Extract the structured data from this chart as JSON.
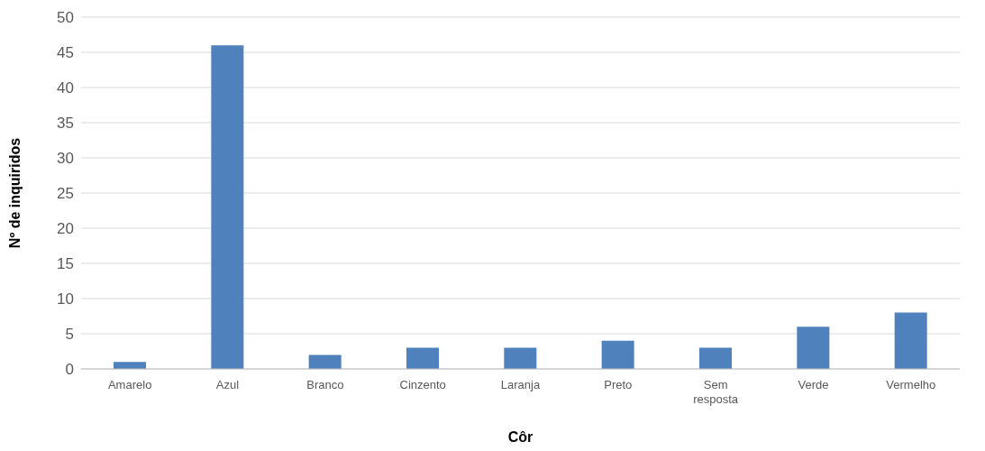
{
  "chart_data": {
    "type": "bar",
    "xlabel": "Côr",
    "ylabel": "Nº de inquiridos",
    "categories": [
      "Amarelo",
      "Azul",
      "Branco",
      "Cinzento",
      "Laranja",
      "Preto",
      "Sem resposta",
      "Verde",
      "Vermelho"
    ],
    "values": [
      1,
      46,
      2,
      3,
      3,
      4,
      3,
      6,
      8
    ],
    "color": "#4f81bd",
    "ylim": [
      0,
      50
    ],
    "yticks": [
      0,
      5,
      10,
      15,
      20,
      25,
      30,
      35,
      40,
      45,
      50
    ],
    "grid": "y",
    "legend": false
  }
}
